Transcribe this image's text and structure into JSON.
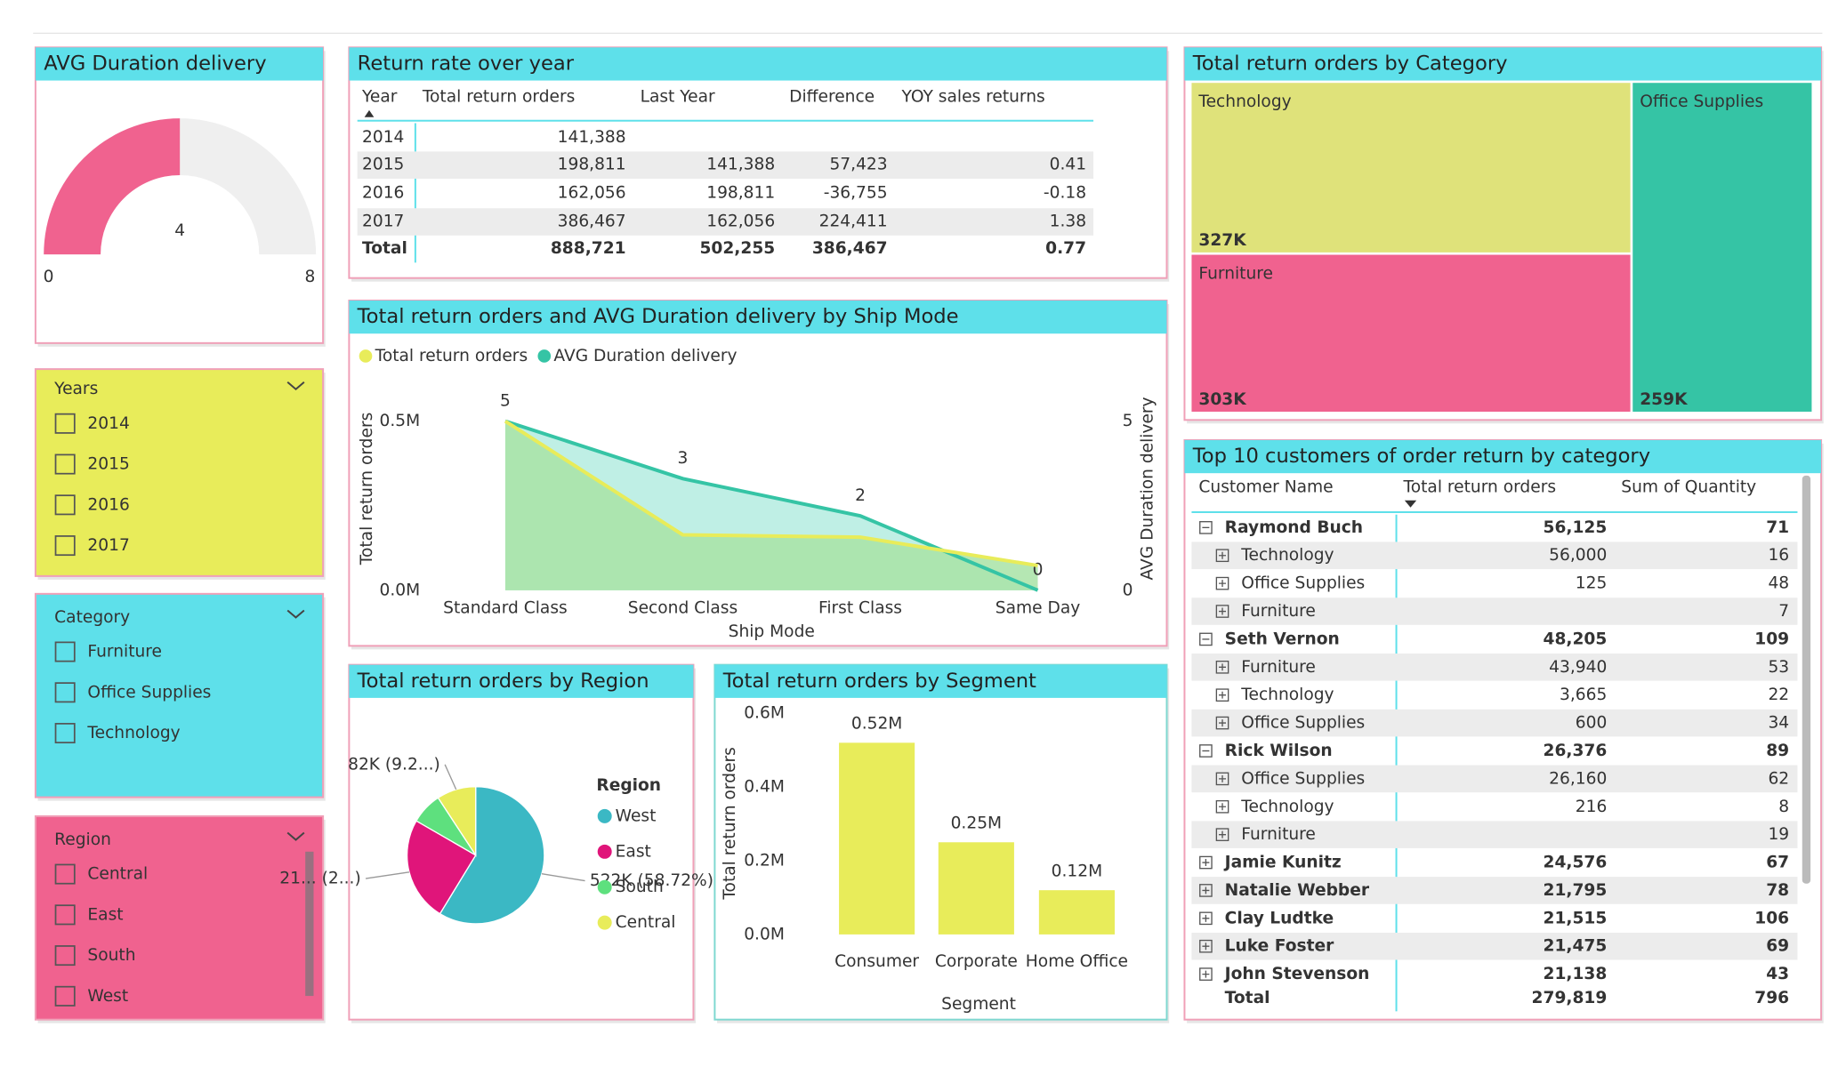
{
  "gauge": {
    "title": "AVG Duration delivery",
    "value": 4,
    "min": 0,
    "max": 8,
    "color": "#f0628f"
  },
  "return_table": {
    "title": "Return rate over year",
    "columns": [
      "Year",
      "Total return orders",
      "Last Year",
      "Difference",
      "YOY sales returns"
    ],
    "rows": [
      [
        "2014",
        "141,388",
        null,
        null,
        null
      ],
      [
        "2015",
        "198,811",
        "141,388",
        "57,423",
        "0.41"
      ],
      [
        "2016",
        "162,056",
        "198,811",
        "-36,755",
        "-0.18"
      ],
      [
        "2017",
        "386,467",
        "162,056",
        "224,411",
        "1.38"
      ]
    ],
    "total": [
      "Total",
      "888,721",
      "502,255",
      "386,467",
      "0.77"
    ]
  },
  "slicers": [
    {
      "title": "Years",
      "items": [
        "2014",
        "2015",
        "2016",
        "2017"
      ],
      "color": "#e8ec5a"
    },
    {
      "title": "Category",
      "items": [
        "Furniture",
        "Office Supplies",
        "Technology"
      ],
      "color": "#5ee0ea"
    },
    {
      "title": "Region",
      "items": [
        "Central",
        "East",
        "South",
        "West"
      ],
      "color": "#f0628f"
    }
  ],
  "ship_mode_chart": {
    "type": "area",
    "title": "Total return orders and AVG Duration delivery by Ship Mode",
    "x_label": "Ship Mode",
    "y_label": "Total return orders",
    "y2_label": "AVG Duration delivery",
    "categories": [
      "Standard Class",
      "Second Class",
      "First Class",
      "Same Day"
    ],
    "series": [
      {
        "name": "Total return orders",
        "color": "#e8ec5a",
        "fill": "#a8e3a6",
        "values": [
          0.5,
          0.164,
          0.157,
          0.073
        ]
      },
      {
        "name": "AVG Duration delivery",
        "color": "#35c4a5",
        "fill": "#b4ece0",
        "axis": "y2",
        "values": [
          5,
          3.3,
          2.2,
          0
        ],
        "value_labels": [
          "5",
          "3",
          "2",
          "0"
        ]
      }
    ],
    "ylim": [
      0,
      0.5
    ],
    "yticks": [
      {
        "value": 0,
        "label": "0.0M"
      },
      {
        "value": 0.5,
        "label": "0.5M"
      }
    ],
    "y2lim": [
      0,
      5
    ],
    "y2ticks": [
      0,
      5
    ]
  },
  "region_pie": {
    "type": "pie",
    "title": "Total return orders by Region",
    "legend_title": "Region",
    "categories": [
      "West",
      "East",
      "South",
      "Central"
    ],
    "values": [
      522,
      219,
      66,
      82
    ],
    "value_labels": [
      "522K (58.72%)",
      "21... (2...)",
      null,
      "82K (9.2...)"
    ],
    "colors": [
      "#3bb8c4",
      "#e0157a",
      "#5ee07e",
      "#e8ec5a"
    ]
  },
  "segment_bar": {
    "type": "bar",
    "title": "Total return orders by Segment",
    "x_label": "Segment",
    "y_label": "Total return orders",
    "categories": [
      "Consumer",
      "Corporate",
      "Home Office"
    ],
    "values": [
      0.52,
      0.25,
      0.12
    ],
    "value_labels": [
      "0.52M",
      "0.25M",
      "0.12M"
    ],
    "color": "#e8ec5a",
    "ylim": [
      0,
      0.6
    ],
    "yticks": [
      {
        "value": 0,
        "label": "0.0M"
      },
      {
        "value": 0.2,
        "label": "0.2M"
      },
      {
        "value": 0.4,
        "label": "0.4M"
      },
      {
        "value": 0.6,
        "label": "0.6M"
      }
    ]
  },
  "category_treemap": {
    "type": "treemap",
    "title": "Total return orders by Category",
    "categories": [
      "Technology",
      "Furniture",
      "Office Supplies"
    ],
    "values": [
      327,
      303,
      259
    ],
    "value_labels": [
      "327K",
      "303K",
      "259K"
    ],
    "colors": [
      "#dfe27a",
      "#f0628f",
      "#35c4a5"
    ]
  },
  "customers_matrix": {
    "title": "Top 10 customers of order return by category",
    "columns": [
      "Customer Name",
      "Total return orders",
      "Sum of Quantity"
    ],
    "rows": [
      {
        "name": "Raymond Buch",
        "total": "56,125",
        "quantity": "71",
        "children": [
          {
            "name": "Technology",
            "total": "56,000",
            "quantity": "16"
          },
          {
            "name": "Office Supplies",
            "total": "125",
            "quantity": "48"
          },
          {
            "name": "Furniture",
            "total": null,
            "quantity": "7"
          }
        ]
      },
      {
        "name": "Seth Vernon",
        "total": "48,205",
        "quantity": "109",
        "children": [
          {
            "name": "Furniture",
            "total": "43,940",
            "quantity": "53"
          },
          {
            "name": "Technology",
            "total": "3,665",
            "quantity": "22"
          },
          {
            "name": "Office Supplies",
            "total": "600",
            "quantity": "34"
          }
        ]
      },
      {
        "name": "Rick Wilson",
        "total": "26,376",
        "quantity": "89",
        "children": [
          {
            "name": "Office Supplies",
            "total": "26,160",
            "quantity": "62"
          },
          {
            "name": "Technology",
            "total": "216",
            "quantity": "8"
          },
          {
            "name": "Furniture",
            "total": null,
            "quantity": "19"
          }
        ]
      },
      {
        "name": "Jamie Kunitz",
        "total": "24,576",
        "quantity": "67"
      },
      {
        "name": "Natalie Webber",
        "total": "21,795",
        "quantity": "78"
      },
      {
        "name": "Clay Ludtke",
        "total": "21,515",
        "quantity": "106"
      },
      {
        "name": "Luke Foster",
        "total": "21,475",
        "quantity": "69"
      },
      {
        "name": "John Stevenson",
        "total": "21,138",
        "quantity": "43"
      }
    ],
    "total": {
      "name": "Total",
      "total": "279,819",
      "quantity": "796"
    }
  }
}
